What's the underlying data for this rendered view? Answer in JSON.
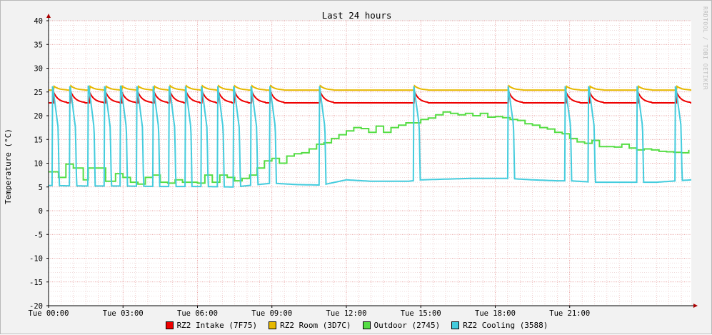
{
  "chart_data": {
    "type": "line",
    "title": "Last 24 hours",
    "ylabel": "Temperature (°C)",
    "xlabel": "",
    "watermark": "RRDTOOL / TOBI OETIKER",
    "ylim": [
      -20,
      40
    ],
    "yticks": [
      40,
      35,
      30,
      25,
      20,
      15,
      10,
      5,
      0,
      -5,
      -10,
      -15,
      -20
    ],
    "xlim": [
      0,
      25.9
    ],
    "xticks": [
      {
        "hour": 0,
        "label": "Tue 00:00"
      },
      {
        "hour": 3,
        "label": "Tue 03:00"
      },
      {
        "hour": 6,
        "label": "Tue 06:00"
      },
      {
        "hour": 9,
        "label": "Tue 09:00"
      },
      {
        "hour": 12,
        "label": "Tue 12:00"
      },
      {
        "hour": 15,
        "label": "Tue 15:00"
      },
      {
        "hour": 18,
        "label": "Tue 18:00"
      },
      {
        "hour": 21,
        "label": "Tue 21:00"
      }
    ],
    "grid": true,
    "legend_position": "bottom",
    "series": [
      {
        "name": "RZ2 Intake (7F75)",
        "color": "#ee0000",
        "base": 22.7,
        "peak": 25.0,
        "spikes": [
          0.2,
          0.9,
          1.65,
          2.3,
          2.95,
          3.6,
          4.25,
          4.9,
          5.55,
          6.2,
          6.85,
          7.5,
          8.2,
          8.95,
          10.95,
          14.75,
          18.55,
          20.85,
          21.8,
          23.75,
          25.3
        ]
      },
      {
        "name": "RZ2 Room (3D7C)",
        "color": "#e6b800",
        "base": 25.4,
        "peak": 26.3,
        "spikes": [
          0.2,
          0.9,
          1.65,
          2.3,
          2.95,
          3.6,
          4.25,
          4.9,
          5.55,
          6.2,
          6.85,
          7.5,
          8.2,
          8.95,
          10.95,
          14.75,
          18.55,
          20.85,
          21.8,
          23.75,
          25.3
        ]
      },
      {
        "name": "Outdoor (2745)",
        "color": "#55dd44",
        "x": [
          0,
          0.4,
          0.7,
          1.0,
          1.4,
          1.6,
          1.9,
          2.3,
          2.7,
          3.0,
          3.3,
          3.6,
          3.9,
          4.2,
          4.5,
          4.8,
          5.1,
          5.4,
          5.7,
          6.0,
          6.3,
          6.6,
          6.9,
          7.2,
          7.5,
          7.8,
          8.1,
          8.4,
          8.7,
          9.0,
          9.3,
          9.6,
          9.9,
          10.2,
          10.5,
          10.8,
          11.1,
          11.4,
          11.7,
          12.0,
          12.3,
          12.6,
          12.9,
          13.2,
          13.5,
          13.8,
          14.1,
          14.4,
          14.7,
          15.0,
          15.3,
          15.6,
          15.9,
          16.2,
          16.5,
          16.8,
          17.1,
          17.4,
          17.7,
          18.0,
          18.3,
          18.6,
          18.9,
          19.2,
          19.5,
          19.8,
          20.1,
          20.4,
          20.7,
          21.0,
          21.3,
          21.6,
          21.9,
          22.2,
          22.5,
          22.8,
          23.1,
          23.4,
          23.7,
          24.0,
          24.3,
          24.6,
          24.9,
          25.2,
          25.5,
          25.8
        ],
        "y": [
          8.2,
          7.0,
          9.8,
          9.0,
          6.5,
          9.0,
          9.0,
          6.2,
          7.8,
          7.0,
          6.0,
          5.6,
          7.0,
          7.5,
          6.0,
          5.8,
          6.5,
          6.0,
          6.0,
          5.8,
          7.5,
          6.0,
          7.5,
          7.0,
          6.3,
          6.8,
          7.5,
          9.0,
          10.5,
          11.0,
          10.0,
          11.5,
          12.0,
          12.2,
          13.0,
          14.0,
          14.3,
          15.2,
          16.0,
          16.8,
          17.5,
          17.3,
          16.5,
          17.8,
          16.5,
          17.5,
          18.0,
          18.5,
          18.5,
          19.2,
          19.5,
          20.2,
          20.8,
          20.5,
          20.2,
          20.5,
          20.0,
          20.5,
          19.7,
          19.8,
          19.6,
          19.2,
          19.0,
          18.3,
          18.0,
          17.5,
          17.2,
          16.5,
          16.2,
          15.2,
          14.5,
          14.2,
          14.8,
          13.5,
          13.5,
          13.4,
          14.0,
          13.2,
          12.8,
          13.0,
          12.8,
          12.5,
          12.4,
          12.3,
          12.2,
          12.8
        ]
      },
      {
        "name": "RZ2 Cooling (3588)",
        "color": "#44ccdd",
        "base_x": [
          0,
          1.5,
          3.0,
          4.5,
          6.0,
          7.5,
          9.0,
          10.0,
          11.0,
          12.0,
          13.0,
          14.5,
          15.0,
          17.0,
          18.5,
          19.5,
          20.5,
          21.0,
          22.0,
          23.5,
          24.5,
          25.9
        ],
        "base_y": [
          5.3,
          5.2,
          5.2,
          5.1,
          5.1,
          5.0,
          5.8,
          5.5,
          5.4,
          6.5,
          6.2,
          6.2,
          6.5,
          6.8,
          6.8,
          6.5,
          6.3,
          6.3,
          6.0,
          6.0,
          6.0,
          6.5
        ],
        "peak": 26.2,
        "spikes": [
          0.15,
          0.85,
          1.6,
          2.25,
          2.9,
          3.55,
          4.2,
          4.85,
          5.5,
          6.15,
          6.8,
          7.45,
          8.15,
          8.9,
          10.9,
          14.7,
          18.5,
          20.8,
          21.75,
          23.7,
          25.25
        ]
      }
    ]
  }
}
